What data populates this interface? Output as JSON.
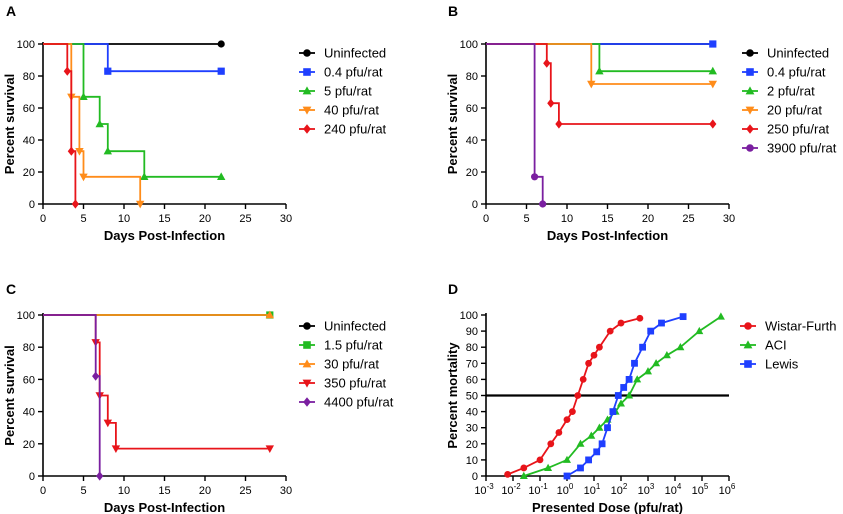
{
  "chart_data": [
    {
      "panel": "A",
      "type": "line",
      "xlabel": "Days Post-Infection",
      "ylabel": "Percent survival",
      "xlim": [
        0,
        30
      ],
      "ylim": [
        0,
        100
      ],
      "xticks": [
        0,
        5,
        10,
        15,
        20,
        25,
        30
      ],
      "yticks": [
        0,
        20,
        40,
        60,
        80,
        100
      ],
      "series": [
        {
          "name": "Uninfected",
          "color": "#000000",
          "marker": "circle",
          "steps": [
            [
              0,
              100
            ],
            [
              22,
              100
            ]
          ],
          "points": [
            [
              22,
              100
            ]
          ]
        },
        {
          "name": "0.4 pfu/rat",
          "color": "#1f3fff",
          "marker": "square",
          "steps": [
            [
              0,
              100
            ],
            [
              8,
              100
            ],
            [
              8,
              83
            ],
            [
              22,
              83
            ]
          ],
          "points": [
            [
              8,
              83
            ],
            [
              22,
              83
            ]
          ]
        },
        {
          "name": "5 pfu/rat",
          "color": "#22bb22",
          "marker": "triangle-up",
          "steps": [
            [
              0,
              100
            ],
            [
              5,
              100
            ],
            [
              5,
              67
            ],
            [
              7,
              67
            ],
            [
              7,
              50
            ],
            [
              8,
              50
            ],
            [
              8,
              33
            ],
            [
              12.5,
              33
            ],
            [
              12.5,
              17
            ],
            [
              22,
              17
            ]
          ],
          "points": [
            [
              5,
              67
            ],
            [
              7,
              50
            ],
            [
              8,
              33
            ],
            [
              12.5,
              17
            ],
            [
              22,
              17
            ]
          ]
        },
        {
          "name": "40 pfu/rat",
          "color": "#ff8c1a",
          "marker": "triangle-down",
          "steps": [
            [
              0,
              100
            ],
            [
              3.5,
              100
            ],
            [
              3.5,
              67
            ],
            [
              4.5,
              67
            ],
            [
              4.5,
              33
            ],
            [
              5,
              33
            ],
            [
              5,
              17
            ],
            [
              12,
              17
            ],
            [
              12,
              0
            ]
          ],
          "points": [
            [
              3.5,
              67
            ],
            [
              4.5,
              33
            ],
            [
              5,
              17
            ],
            [
              12,
              0
            ]
          ]
        },
        {
          "name": "240 pfu/rat",
          "color": "#e8141a",
          "marker": "diamond",
          "steps": [
            [
              0,
              100
            ],
            [
              3,
              100
            ],
            [
              3,
              83
            ],
            [
              3.5,
              83
            ],
            [
              3.5,
              33
            ],
            [
              4,
              33
            ],
            [
              4,
              0
            ]
          ],
          "points": [
            [
              3,
              83
            ],
            [
              3.5,
              33
            ],
            [
              4,
              0
            ]
          ]
        }
      ]
    },
    {
      "panel": "B",
      "type": "line",
      "xlabel": "Days Post-Infection",
      "ylabel": "Percent survival",
      "xlim": [
        0,
        30
      ],
      "ylim": [
        0,
        100
      ],
      "xticks": [
        0,
        5,
        10,
        15,
        20,
        25,
        30
      ],
      "yticks": [
        0,
        20,
        40,
        60,
        80,
        100
      ],
      "series": [
        {
          "name": "Uninfected",
          "color": "#000000",
          "marker": "circle",
          "steps": [
            [
              0,
              100
            ],
            [
              28,
              100
            ]
          ],
          "points": []
        },
        {
          "name": "0.4 pfu/rat",
          "color": "#1f3fff",
          "marker": "square",
          "steps": [
            [
              0,
              100
            ],
            [
              28,
              100
            ]
          ],
          "points": [
            [
              28,
              100
            ]
          ]
        },
        {
          "name": "2 pfu/rat",
          "color": "#22bb22",
          "marker": "triangle-up",
          "steps": [
            [
              0,
              100
            ],
            [
              14,
              100
            ],
            [
              14,
              83
            ],
            [
              28,
              83
            ]
          ],
          "points": [
            [
              14,
              83
            ],
            [
              28,
              83
            ]
          ]
        },
        {
          "name": "20 pfu/rat",
          "color": "#ff8c1a",
          "marker": "triangle-down",
          "steps": [
            [
              0,
              100
            ],
            [
              13,
              100
            ],
            [
              13,
              75
            ],
            [
              28,
              75
            ]
          ],
          "points": [
            [
              13,
              75
            ],
            [
              28,
              75
            ]
          ]
        },
        {
          "name": "250 pfu/rat",
          "color": "#e8141a",
          "marker": "diamond",
          "steps": [
            [
              0,
              100
            ],
            [
              7.5,
              100
            ],
            [
              7.5,
              88
            ],
            [
              8,
              88
            ],
            [
              8,
              63
            ],
            [
              9,
              63
            ],
            [
              9,
              50
            ],
            [
              28,
              50
            ]
          ],
          "points": [
            [
              7.5,
              88
            ],
            [
              8,
              63
            ],
            [
              9,
              50
            ],
            [
              28,
              50
            ]
          ]
        },
        {
          "name": "3900 pfu/rat",
          "color": "#7a1fa0",
          "marker": "circle",
          "steps": [
            [
              0,
              100
            ],
            [
              6,
              100
            ],
            [
              6,
              17
            ],
            [
              7,
              17
            ],
            [
              7,
              0
            ]
          ],
          "points": [
            [
              6,
              17
            ],
            [
              7,
              0
            ]
          ]
        }
      ]
    },
    {
      "panel": "C",
      "type": "line",
      "xlabel": "Days Post-Infection",
      "ylabel": "Percent survival",
      "xlim": [
        0,
        30
      ],
      "ylim": [
        0,
        100
      ],
      "xticks": [
        0,
        5,
        10,
        15,
        20,
        25,
        30
      ],
      "yticks": [
        0,
        20,
        40,
        60,
        80,
        100
      ],
      "series": [
        {
          "name": "Uninfected",
          "color": "#000000",
          "marker": "circle",
          "steps": [
            [
              0,
              100
            ],
            [
              28,
              100
            ]
          ],
          "points": []
        },
        {
          "name": "1.5 pfu/rat",
          "color": "#22bb22",
          "marker": "square",
          "steps": [
            [
              0,
              100
            ],
            [
              28,
              100
            ]
          ],
          "points": [
            [
              28,
              100
            ]
          ]
        },
        {
          "name": "30 pfu/rat",
          "color": "#ff8c1a",
          "marker": "triangle-up",
          "steps": [
            [
              0,
              100
            ],
            [
              28,
              100
            ]
          ],
          "points": [
            [
              28,
              100
            ]
          ]
        },
        {
          "name": "350 pfu/rat",
          "color": "#e8141a",
          "marker": "triangle-down",
          "steps": [
            [
              0,
              100
            ],
            [
              6.5,
              100
            ],
            [
              6.5,
              83
            ],
            [
              7,
              83
            ],
            [
              7,
              50
            ],
            [
              8,
              50
            ],
            [
              8,
              33
            ],
            [
              9,
              33
            ],
            [
              9,
              17
            ],
            [
              28,
              17
            ]
          ],
          "points": [
            [
              6.5,
              83
            ],
            [
              7,
              50
            ],
            [
              8,
              33
            ],
            [
              9,
              17
            ],
            [
              28,
              17
            ]
          ]
        },
        {
          "name": "4400 pfu/rat",
          "color": "#7a1fa0",
          "marker": "diamond",
          "steps": [
            [
              0,
              100
            ],
            [
              6.5,
              100
            ],
            [
              6.5,
              62
            ],
            [
              7,
              62
            ],
            [
              7,
              0
            ]
          ],
          "points": [
            [
              6.5,
              62
            ],
            [
              7,
              0
            ]
          ]
        }
      ]
    },
    {
      "panel": "D",
      "type": "line",
      "xscale": "log",
      "xlabel": "Presented Dose (pfu/rat)",
      "ylabel": "Percent mortality",
      "xlim": [
        -3,
        6
      ],
      "ylim": [
        0,
        100
      ],
      "xticks": [
        -3,
        -2,
        -1,
        0,
        1,
        2,
        3,
        4,
        5,
        6
      ],
      "yticks": [
        0,
        10,
        20,
        30,
        40,
        50,
        60,
        70,
        80,
        90,
        100
      ],
      "reference_line_y": 50,
      "series": [
        {
          "name": "Wistar-Furth",
          "color": "#e8141a",
          "marker": "circle",
          "log10_dose": [
            -2.2,
            -1.6,
            -1.0,
            -0.6,
            -0.3,
            0.0,
            0.2,
            0.4,
            0.6,
            0.8,
            1.0,
            1.2,
            1.6,
            2.0,
            2.7
          ],
          "values": [
            1,
            5,
            10,
            20,
            27,
            35,
            40,
            50,
            60,
            70,
            75,
            80,
            90,
            95,
            98
          ]
        },
        {
          "name": "ACI",
          "color": "#22bb22",
          "marker": "triangle-up",
          "log10_dose": [
            -1.6,
            -0.7,
            0.0,
            0.5,
            0.9,
            1.2,
            1.5,
            1.8,
            2.0,
            2.3,
            2.6,
            3.0,
            3.3,
            3.7,
            4.2,
            4.9,
            5.7
          ],
          "values": [
            0,
            5,
            10,
            20,
            25,
            30,
            35,
            40,
            45,
            50,
            60,
            65,
            70,
            75,
            80,
            90,
            99
          ]
        },
        {
          "name": "Lewis",
          "color": "#1f3fff",
          "marker": "square",
          "log10_dose": [
            0.0,
            0.5,
            0.8,
            1.1,
            1.3,
            1.5,
            1.7,
            1.9,
            2.1,
            2.3,
            2.5,
            2.8,
            3.1,
            3.5,
            4.3
          ],
          "values": [
            0,
            5,
            10,
            15,
            20,
            30,
            40,
            50,
            55,
            60,
            70,
            80,
            90,
            95,
            99
          ]
        }
      ]
    }
  ]
}
